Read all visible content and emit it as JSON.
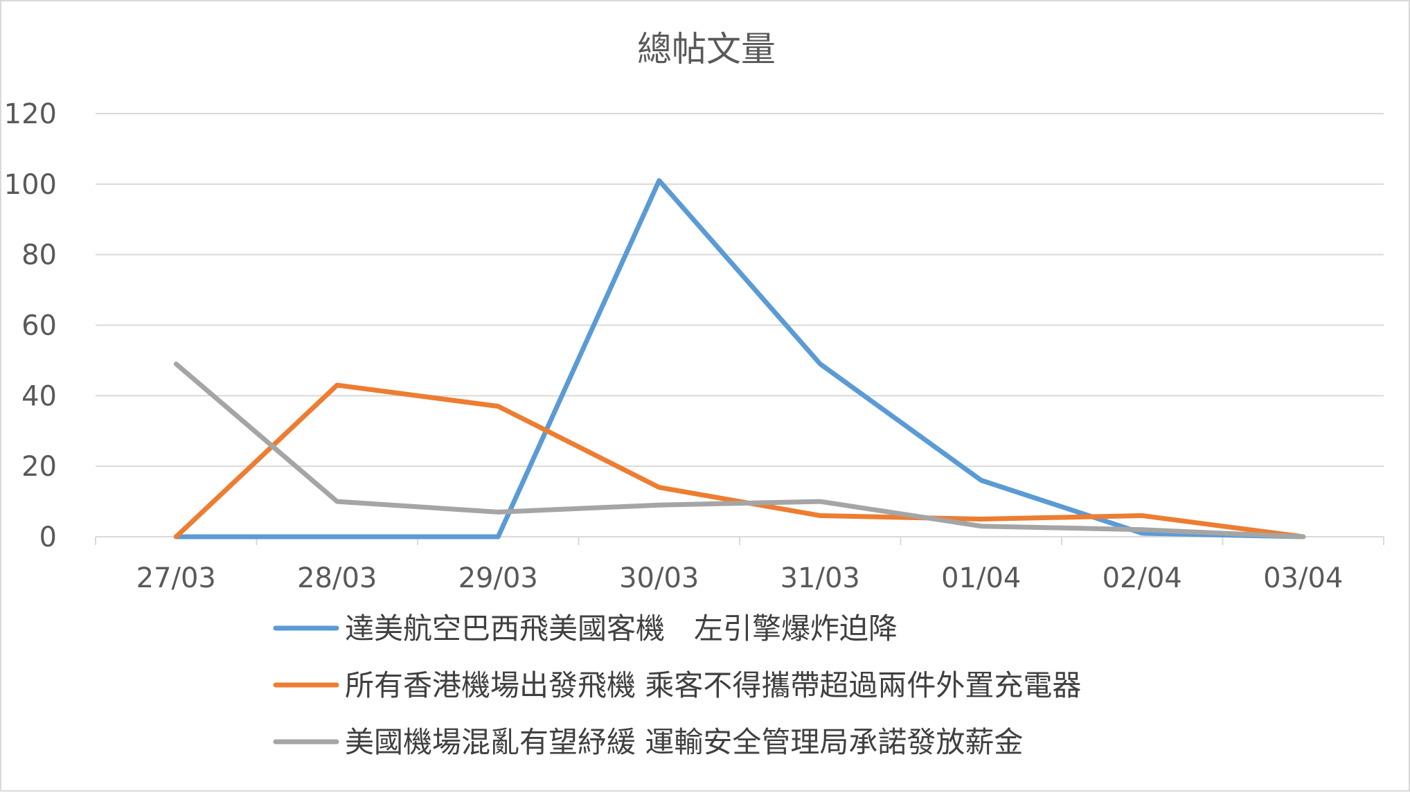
{
  "chart_data": {
    "type": "line",
    "title": "總帖文量",
    "xlabel": "",
    "ylabel": "",
    "categories": [
      "27/03",
      "28/03",
      "29/03",
      "30/03",
      "31/03",
      "01/04",
      "02/04",
      "03/04"
    ],
    "ylim": [
      0,
      120
    ],
    "yticks": [
      0,
      20,
      40,
      60,
      80,
      100,
      120
    ],
    "grid": true,
    "legend_position": "bottom",
    "series": [
      {
        "name": "達美航空巴西飛美國客機　左引擎爆炸迫降",
        "color": "#5b9bd5",
        "values": [
          0,
          0,
          0,
          101,
          49,
          16,
          1,
          0
        ]
      },
      {
        "name": "所有香港機場出發飛機 乘客不得攜帶超過兩件外置充電器",
        "color": "#ed7d31",
        "values": [
          0,
          43,
          37,
          14,
          6,
          5,
          6,
          0
        ]
      },
      {
        "name": "美國機場混亂有望紓緩 運輸安全管理局承諾發放薪金",
        "color": "#a5a5a5",
        "values": [
          49,
          10,
          7,
          9,
          10,
          3,
          2,
          0
        ]
      }
    ]
  }
}
